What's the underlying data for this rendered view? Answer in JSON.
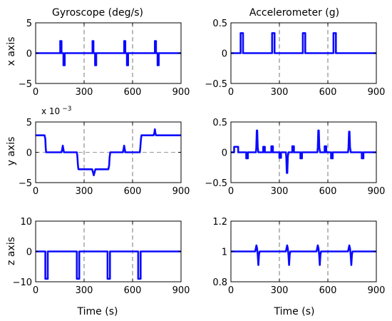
{
  "chart_data": [
    {
      "type": "line",
      "title": "Gyroscope (deg/s)",
      "ylabel": "x axis",
      "xlabel": "",
      "xlim": [
        0,
        900
      ],
      "ylim": [
        -5,
        5
      ],
      "xticks": [
        "0",
        "300",
        "600",
        "900"
      ],
      "yticks": [
        "5",
        "0",
        "−5"
      ],
      "vlines": [
        300,
        600
      ],
      "series": [
        {
          "x": [
            0,
            152,
            152,
            160,
            160,
            172,
            172,
            180,
            180,
            352,
            352,
            358,
            358,
            368,
            368,
            375,
            375,
            548,
            548,
            555,
            555,
            565,
            565,
            572,
            572,
            738,
            738,
            745,
            745,
            755,
            755,
            762,
            762,
            900
          ],
          "y": [
            0,
            0,
            2,
            2,
            0,
            0,
            -2,
            -2,
            0,
            0,
            2,
            2,
            0,
            0,
            -2,
            -2,
            0,
            0,
            2,
            2,
            0,
            0,
            -2,
            -2,
            0,
            0,
            2,
            2,
            0,
            0,
            -2,
            -2,
            0,
            0
          ]
        }
      ]
    },
    {
      "type": "line",
      "title": "Accelerometer (g)",
      "ylabel": "",
      "xlabel": "",
      "xlim": [
        0,
        900
      ],
      "ylim": [
        -0.5,
        0.5
      ],
      "xticks": [
        "0",
        "300",
        "600",
        "900"
      ],
      "yticks": [
        "0.5",
        "0",
        "−0.5"
      ],
      "vlines": [
        300,
        600
      ],
      "series": [
        {
          "x": [
            0,
            60,
            60,
            75,
            75,
            255,
            255,
            270,
            270,
            445,
            445,
            460,
            460,
            635,
            635,
            650,
            650,
            900
          ],
          "y": [
            0,
            0,
            0.33,
            0.33,
            0,
            0,
            0.33,
            0.33,
            0,
            0,
            0.33,
            0.33,
            0,
            0,
            0.33,
            0.33,
            0,
            0
          ]
        }
      ]
    },
    {
      "type": "line",
      "title": "",
      "ylabel": "y axis",
      "xlabel": "",
      "exponent": "x 10",
      "exponent_power": "−3",
      "xlim": [
        0,
        900
      ],
      "ylim": [
        -5,
        5
      ],
      "xticks": [
        "0",
        "300",
        "600",
        "900"
      ],
      "yticks": [
        "5",
        "0",
        "−5"
      ],
      "vlines": [
        300,
        600
      ],
      "hlines": [
        0
      ],
      "series": [
        {
          "x": [
            0,
            55,
            60,
            62,
            65,
            70,
            160,
            165,
            168,
            171,
            175,
            255,
            258,
            262,
            265,
            268,
            350,
            355,
            360,
            365,
            370,
            450,
            455,
            458,
            462,
            465,
            540,
            545,
            548,
            551,
            555,
            645,
            648,
            652,
            655,
            660,
            730,
            735,
            738,
            741,
            745,
            900
          ],
          "y": [
            2.8,
            2.8,
            2.2,
            0.8,
            0,
            0,
            0,
            0.6,
            1.1,
            0.6,
            0,
            0,
            -0.6,
            -2.2,
            -2.8,
            -2.8,
            -2.8,
            -3.3,
            -3.8,
            -3.3,
            -2.8,
            -2.8,
            -2.2,
            -0.8,
            0,
            0,
            0,
            0.6,
            1.1,
            0.6,
            0,
            0,
            0.8,
            2.2,
            2.8,
            2.8,
            2.8,
            3.2,
            3.8,
            3.2,
            2.8,
            2.8
          ]
        }
      ]
    },
    {
      "type": "line",
      "title": "",
      "ylabel": "",
      "xlabel": "",
      "xlim": [
        0,
        900
      ],
      "ylim": [
        -0.5,
        0.5
      ],
      "xticks": [
        "0",
        "300",
        "600",
        "900"
      ],
      "yticks": [
        "0.5",
        "0",
        "−0.5"
      ],
      "vlines": [
        300,
        600
      ],
      "series": [
        {
          "x": [
            0,
            20,
            20,
            45,
            45,
            95,
            95,
            105,
            105,
            155,
            157,
            160,
            163,
            166,
            170,
            200,
            200,
            210,
            210,
            250,
            250,
            260,
            260,
            300,
            300,
            310,
            310,
            340,
            343,
            346,
            349,
            352,
            356,
            380,
            380,
            390,
            390,
            430,
            430,
            440,
            440,
            535,
            538,
            541,
            544,
            547,
            552,
            580,
            580,
            590,
            590,
            620,
            620,
            630,
            630,
            725,
            728,
            731,
            734,
            737,
            742,
            810,
            810,
            820,
            820,
            900
          ],
          "y": [
            0,
            0,
            0.09,
            0.09,
            0,
            0,
            -0.1,
            -0.1,
            0,
            0,
            0.08,
            0.36,
            0.36,
            0.08,
            0,
            0,
            0.09,
            0.09,
            0,
            0,
            0.1,
            0.1,
            0,
            0,
            -0.09,
            -0.09,
            0,
            0,
            -0.08,
            -0.34,
            -0.34,
            -0.08,
            0,
            0,
            0.1,
            0.1,
            0,
            0,
            -0.1,
            -0.1,
            0,
            0,
            0.08,
            0.36,
            0.36,
            0.08,
            0,
            0,
            0.1,
            0.1,
            0,
            0,
            -0.1,
            -0.1,
            0,
            0,
            0.08,
            0.34,
            0.34,
            0.08,
            0,
            0,
            -0.1,
            -0.1,
            0,
            0
          ]
        }
      ]
    },
    {
      "type": "line",
      "title": "",
      "ylabel": "z axis",
      "xlabel": "Time (s)",
      "xlim": [
        0,
        900
      ],
      "ylim": [
        -10,
        10
      ],
      "xticks": [
        "0",
        "300",
        "600",
        "900"
      ],
      "yticks": [
        "10",
        "0",
        "−10"
      ],
      "vlines": [
        300,
        600
      ],
      "series": [
        {
          "x": [
            0,
            60,
            60,
            75,
            75,
            255,
            255,
            270,
            270,
            445,
            445,
            460,
            460,
            635,
            635,
            650,
            650,
            900
          ],
          "y": [
            0,
            0,
            -9,
            -9,
            0,
            0,
            -9,
            -9,
            0,
            0,
            -9,
            -9,
            0,
            0,
            -9,
            -9,
            0,
            0
          ]
        }
      ]
    },
    {
      "type": "line",
      "title": "",
      "ylabel": "",
      "xlabel": "Time (s)",
      "xlim": [
        0,
        900
      ],
      "ylim": [
        0.8,
        1.2
      ],
      "xticks": [
        "0",
        "300",
        "600",
        "900"
      ],
      "yticks": [
        "1.2",
        "1",
        "0.8"
      ],
      "vlines": [
        300,
        600
      ],
      "series": [
        {
          "x": [
            0,
            150,
            154,
            158,
            162,
            166,
            170,
            174,
            178,
            340,
            344,
            348,
            352,
            356,
            360,
            364,
            368,
            530,
            534,
            538,
            542,
            546,
            550,
            554,
            558,
            725,
            729,
            733,
            737,
            741,
            745,
            749,
            753,
            900
          ],
          "y": [
            1.0,
            1.0,
            1.02,
            1.04,
            1.02,
            0.98,
            0.91,
            0.98,
            1.0,
            1.0,
            1.02,
            1.04,
            1.02,
            0.98,
            0.91,
            0.98,
            1.0,
            1.0,
            1.02,
            1.04,
            1.02,
            0.98,
            0.91,
            0.98,
            1.0,
            1.0,
            1.02,
            1.04,
            1.02,
            0.98,
            0.91,
            0.98,
            1.0,
            1.0
          ]
        }
      ]
    }
  ]
}
